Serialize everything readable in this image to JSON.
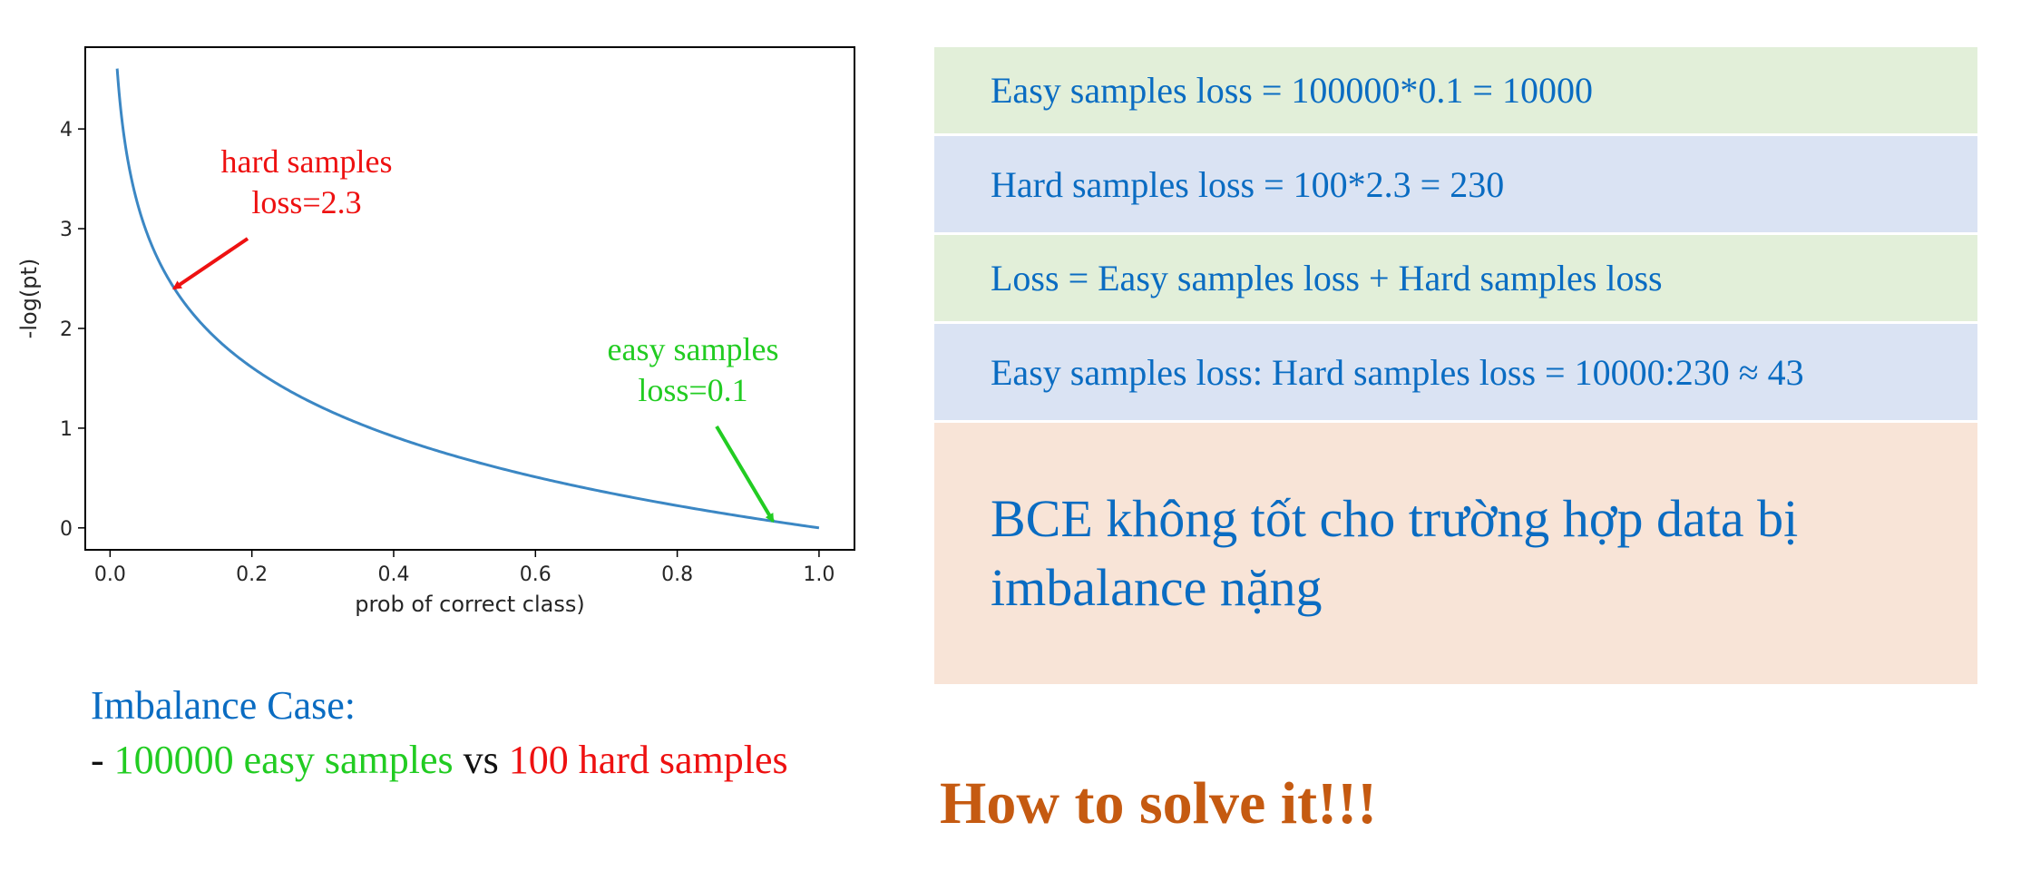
{
  "chart_data": {
    "type": "line",
    "title": "",
    "xlabel": "prob of correct class)",
    "ylabel": "-log(pt)",
    "xlim": [
      -0.035,
      1.05
    ],
    "ylim": [
      -0.22,
      4.82
    ],
    "xticks": [
      0.0,
      0.2,
      0.4,
      0.6,
      0.8,
      1.0
    ],
    "xtick_labels": [
      "0.0",
      "0.2",
      "0.4",
      "0.6",
      "0.8",
      "1.0"
    ],
    "yticks": [
      0,
      1,
      2,
      3,
      4
    ],
    "ytick_labels": [
      "0",
      "1",
      "2",
      "3",
      "4"
    ],
    "series": [
      {
        "name": "-log(pt)",
        "function": "-ln(x)",
        "x_range": [
          0.01,
          1.0
        ],
        "color": "#3b87c4"
      }
    ],
    "annotations": [
      {
        "lines": [
          "hard samples",
          "loss=2.3"
        ],
        "color": "#ee1111",
        "point": [
          0.09,
          2.4
        ]
      },
      {
        "lines": [
          "easy samples",
          "loss=0.1"
        ],
        "color": "#22cc22",
        "point": [
          0.935,
          0.067
        ]
      }
    ]
  },
  "imbalance": {
    "title": "Imbalance Case:",
    "dash": "- ",
    "easy": "100000 easy samples",
    "vs": " vs ",
    "hard": "100 hard samples"
  },
  "boxes": [
    "Easy samples loss = 100000*0.1 = 10000",
    "Hard samples loss = 100*2.3 = 230",
    "Loss = Easy samples loss + Hard samples loss",
    "Easy samples loss: Hard samples loss = 10000:230 ≈ 43",
    "BCE không tốt cho trường hợp data bị imbalance nặng"
  ],
  "solve": "How to solve it!!!",
  "colors": {
    "title_blue": "#0a6cc2",
    "easy_green": "#22cc22",
    "hard_red": "#ee1111",
    "solve_orange": "#c55a11"
  }
}
